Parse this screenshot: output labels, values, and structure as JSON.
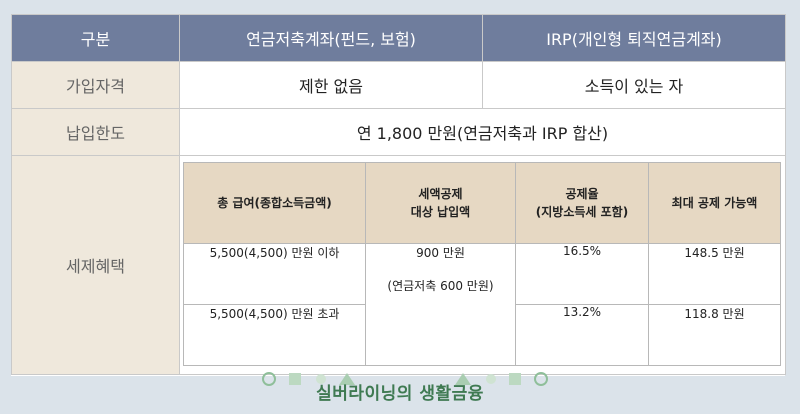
{
  "header": {
    "col1": "구분",
    "col2": "연금저축계좌(펀드, 보험)",
    "col3": "IRP(개인형 퇴직연금계좌)"
  },
  "rows": {
    "eligibility": {
      "label": "가입자격",
      "pension": "제한 없음",
      "irp": "소득이 있는 자"
    },
    "limit": {
      "label": "납입한도",
      "value": "연 1,800 만원(연금저축과 IRP 합산)"
    },
    "tax": {
      "label": "세제혜택"
    }
  },
  "tax_table": {
    "headers": [
      "총 급여(종합소득금액)",
      "세액공제\n대상 납입액",
      "공제율\n(지방소득세 포함)",
      "최대 공제 가능액"
    ],
    "row1": {
      "income": "5,500(4,500) 만원 이하",
      "rate": "16.5%",
      "max": "148.5 만원"
    },
    "row2": {
      "income": "5,500(4,500) 만원 초과",
      "rate": "13.2%",
      "max": "118.8 만원"
    },
    "deductible_line1": "900 만원",
    "deductible_line2": "(연금저축 600 만원)"
  },
  "footer": {
    "text": "실버라이닝의 생활금융"
  },
  "colors": {
    "header_bg": "#6f7d9d",
    "label_bg": "#efe8dc",
    "inner_header_bg": "#e6d8c3",
    "footer_text": "#3f7a52",
    "page_bg": "#dbe3ea"
  }
}
